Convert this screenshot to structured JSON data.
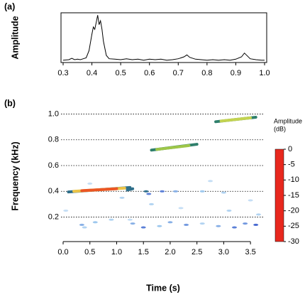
{
  "chart_data": [
    {
      "type": "line",
      "panel_label": "(a)",
      "y_label": "Amplitude",
      "color": "#000000",
      "x": [
        0.3,
        0.32,
        0.33,
        0.34,
        0.35,
        0.36,
        0.37,
        0.38,
        0.39,
        0.4,
        0.405,
        0.41,
        0.415,
        0.42,
        0.425,
        0.43,
        0.435,
        0.44,
        0.45,
        0.46,
        0.48,
        0.5,
        0.52,
        0.54,
        0.56,
        0.58,
        0.6,
        0.62,
        0.64,
        0.66,
        0.68,
        0.7,
        0.72,
        0.73,
        0.74,
        0.76,
        0.78,
        0.8,
        0.82,
        0.84,
        0.86,
        0.88,
        0.9,
        0.92,
        0.93,
        0.94,
        0.95,
        0.97,
        0.99,
        1.0
      ],
      "values": [
        0.05,
        0.06,
        0.09,
        0.06,
        0.07,
        0.06,
        0.08,
        0.1,
        0.25,
        0.6,
        0.75,
        0.7,
        0.85,
        1.0,
        0.8,
        0.88,
        0.7,
        0.45,
        0.15,
        0.08,
        0.07,
        0.06,
        0.08,
        0.06,
        0.07,
        0.05,
        0.07,
        0.06,
        0.07,
        0.05,
        0.06,
        0.08,
        0.12,
        0.16,
        0.11,
        0.07,
        0.06,
        0.05,
        0.06,
        0.05,
        0.06,
        0.05,
        0.07,
        0.12,
        0.2,
        0.14,
        0.08,
        0.06,
        0.05,
        0.05
      ],
      "xlim": [
        0.3,
        1.0
      ],
      "ylim": [
        0,
        1.05
      ],
      "xticks": [
        0.3,
        0.4,
        0.5,
        0.6,
        0.7,
        0.8,
        0.9,
        {
          "value": 1.0,
          "label": "1.0"
        }
      ]
    },
    {
      "type": "spectrogram",
      "panel_label": "(b)",
      "x_label": "Time (s)",
      "y_label": "Frequency (kHz)",
      "xlim": [
        0,
        3.75
      ],
      "ylim": [
        0.01,
        1.03
      ],
      "xticks": [
        {
          "value": 0,
          "label": "0.0"
        },
        0.5,
        {
          "value": 1,
          "label": "1.0"
        },
        1.5,
        {
          "value": 2,
          "label": "2.0"
        },
        2.5,
        {
          "value": 3,
          "label": "3.0"
        },
        3.5
      ],
      "yticks": [
        0.2,
        0.4,
        0.6,
        0.8,
        {
          "value": 1,
          "label": "1.0"
        }
      ],
      "grid": true,
      "colorbar_title": [
        "Amplitude",
        "(dB)"
      ],
      "clim": [
        -30,
        0
      ],
      "cticks": [
        0,
        -5,
        -10,
        -15,
        -20,
        -25,
        -30
      ],
      "colorscale": [
        [
          0,
          "#e8281e"
        ],
        [
          -5,
          "#f29a2e"
        ],
        [
          -10,
          "#e8e05a"
        ],
        [
          -15,
          "#2e9e2e"
        ],
        [
          -20,
          "#3050c8"
        ],
        [
          -25,
          "#9ec8ee"
        ],
        [
          -30,
          "#ffffff"
        ]
      ],
      "streaks": [
        {
          "t": [
            0.1,
            1.25
          ],
          "f": [
            0.395,
            0.43
          ],
          "db": -18
        },
        {
          "t": [
            0.2,
            1.15
          ],
          "f": [
            0.4,
            0.425
          ],
          "db": -8
        },
        {
          "t": [
            0.35,
            1.0
          ],
          "f": [
            0.405,
            0.42
          ],
          "db": -2
        },
        {
          "t": [
            1.65,
            2.5
          ],
          "f": [
            0.72,
            0.765
          ],
          "db": -17
        },
        {
          "t": [
            1.75,
            2.35
          ],
          "f": [
            0.725,
            0.755
          ],
          "db": -12
        },
        {
          "t": [
            2.85,
            3.6
          ],
          "f": [
            0.94,
            0.975
          ],
          "db": -17
        },
        {
          "t": [
            2.95,
            3.5
          ],
          "f": [
            0.945,
            0.97
          ],
          "db": -11
        },
        {
          "t": [
            1.2,
            1.3
          ],
          "f": [
            0.41,
            0.42
          ],
          "db": -18
        }
      ],
      "spots": [
        [
          1.55,
          0.4,
          -18
        ],
        [
          1.6,
          0.38,
          -22
        ],
        [
          1.85,
          0.4,
          -22
        ],
        [
          2.1,
          0.4,
          -24
        ],
        [
          2.6,
          0.4,
          -25
        ],
        [
          3.0,
          0.39,
          -26
        ],
        [
          0.5,
          0.46,
          -27
        ],
        [
          1.1,
          0.35,
          -26
        ],
        [
          0.35,
          0.14,
          -24
        ],
        [
          0.6,
          0.16,
          -25
        ],
        [
          0.9,
          0.18,
          -26
        ],
        [
          1.3,
          0.15,
          -24
        ],
        [
          1.5,
          0.12,
          -22
        ],
        [
          1.65,
          0.3,
          -26
        ],
        [
          1.8,
          0.13,
          -25
        ],
        [
          2.0,
          0.16,
          -24
        ],
        [
          2.3,
          0.14,
          -23
        ],
        [
          2.6,
          0.15,
          -26
        ],
        [
          2.9,
          0.13,
          -24
        ],
        [
          3.2,
          0.12,
          -22
        ],
        [
          3.4,
          0.15,
          -23
        ],
        [
          3.6,
          0.14,
          -21
        ],
        [
          3.1,
          0.25,
          -26
        ],
        [
          3.5,
          0.33,
          -27
        ],
        [
          2.2,
          0.27,
          -27
        ],
        [
          0.05,
          0.25,
          -27
        ],
        [
          0.4,
          0.12,
          -26
        ],
        [
          3.65,
          0.22,
          -26
        ],
        [
          2.75,
          0.48,
          -27
        ],
        [
          1.25,
          0.18,
          -27
        ]
      ]
    }
  ]
}
